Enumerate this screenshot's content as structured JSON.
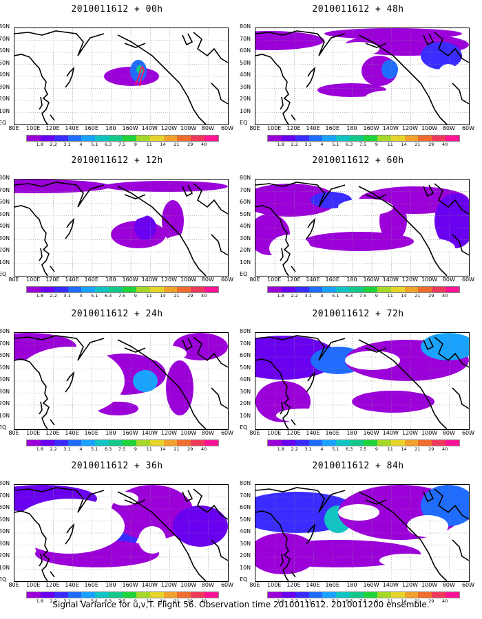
{
  "panels": [
    {
      "title": "2010011612 + 00h",
      "level": 0
    },
    {
      "title": "2010011612 + 48h",
      "level": 4
    },
    {
      "title": "2010011612 + 12h",
      "level": 1
    },
    {
      "title": "2010011612 + 60h",
      "level": 5
    },
    {
      "title": "2010011612 + 24h",
      "level": 2
    },
    {
      "title": "2010011612 + 72h",
      "level": 6
    },
    {
      "title": "2010011612 + 36h",
      "level": 3
    },
    {
      "title": "2010011612 + 84h",
      "level": 7
    }
  ],
  "lat_labels": [
    "80N",
    "70N",
    "60N",
    "50N",
    "40N",
    "30N",
    "20N",
    "10N",
    "EQ"
  ],
  "lon_labels": [
    "80E",
    "100E",
    "120E",
    "140E",
    "160E",
    "180",
    "160W",
    "140W",
    "120W",
    "100W",
    "80W",
    "60W"
  ],
  "colorbar": {
    "values": [
      "1.8",
      "2.2",
      "3.1",
      "4",
      "5.1",
      "6.3",
      "7.5",
      "9",
      "11",
      "14",
      "21",
      "29",
      "40"
    ],
    "colors": [
      "#9b00d9",
      "#6a00f0",
      "#3a2cff",
      "#1f6cff",
      "#19a3ff",
      "#10c4c4",
      "#13c98a",
      "#1ed43a",
      "#a6d829",
      "#e6d42a",
      "#f0a22c",
      "#ef6d2d",
      "#ee3a5a",
      "#ff1493"
    ]
  },
  "footer": "Signal Variance for u,v,T. Flight 56. Observation time 2010011612. 2010011200 ensemble."
}
